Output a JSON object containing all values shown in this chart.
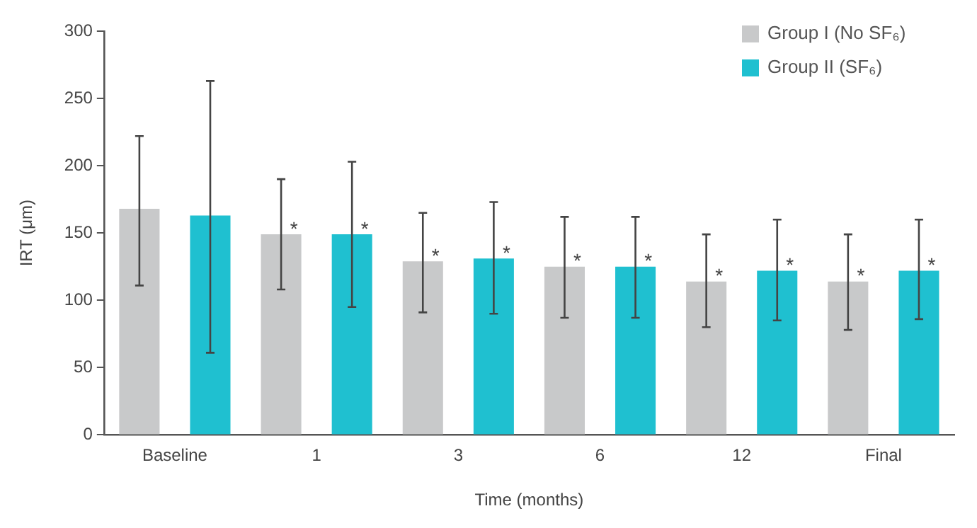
{
  "chart_data": {
    "type": "bar",
    "xlabel": "Time (months)",
    "ylabel": "IRT (μm)",
    "categories": [
      "Baseline",
      "1",
      "3",
      "6",
      "12",
      "Final"
    ],
    "series": [
      {
        "name": "Group I (No SF₆)",
        "color": "#c8c9ca",
        "values": [
          168,
          149,
          129,
          125,
          114,
          114
        ],
        "errors": [
          [
            111,
            222
          ],
          [
            108,
            190
          ],
          [
            91,
            165
          ],
          [
            87,
            162
          ],
          [
            80,
            149
          ],
          [
            78,
            149
          ]
        ]
      },
      {
        "name": "Group II (SF₆)",
        "color": "#1fc0d0",
        "values": [
          163,
          149,
          131,
          125,
          122,
          122
        ],
        "errors": [
          [
            61,
            263
          ],
          [
            95,
            203
          ],
          [
            90,
            173
          ],
          [
            87,
            162
          ],
          [
            85,
            160
          ],
          [
            86,
            160
          ]
        ]
      }
    ],
    "ylim": [
      0,
      300
    ],
    "yticks": [
      0,
      50,
      100,
      150,
      200,
      250,
      300
    ],
    "grid": false,
    "legend": "top right",
    "annotations": [
      "*",
      "*",
      "*",
      "*",
      "*",
      "*",
      "*",
      "*",
      "*",
      "*"
    ]
  }
}
